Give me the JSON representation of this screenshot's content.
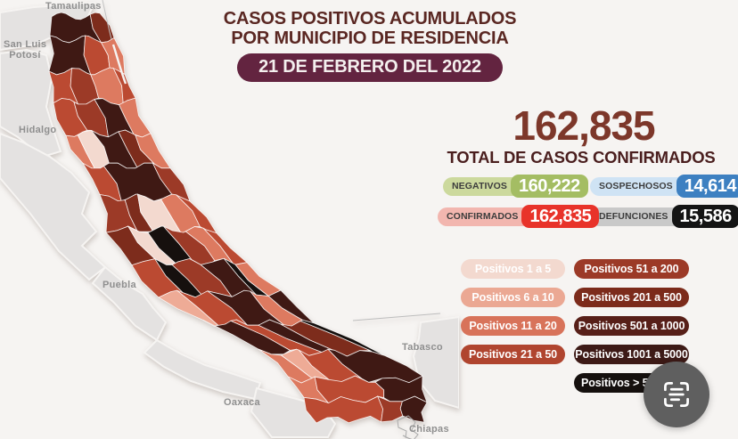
{
  "header": {
    "title_line1": "CASOS POSITIVOS ACUMULADOS",
    "title_line2": "POR MUNICIPIO DE RESIDENCIA",
    "date_banner": "21 DE FEBRERO DEL 2022"
  },
  "summary": {
    "total_value": "162,835",
    "total_label": "TOTAL DE CASOS CONFIRMADOS",
    "badges": [
      {
        "label": "NEGATIVOS",
        "value": "160,222",
        "label_bg": "#ccd99d",
        "value_bg": "#a4bd63",
        "label_color": "#3d3d3d"
      },
      {
        "label": "SOSPECHOSOS",
        "value": "14,614",
        "label_bg": "#cfe3f4",
        "value_bg": "#3d80c1",
        "label_color": "#3d3d3d"
      },
      {
        "label": "CONFIRMADOS",
        "value": "162,835",
        "label_bg": "#f2b6af",
        "value_bg": "#e8332a",
        "label_color": "#3d3d3d"
      },
      {
        "label": "DEFUNCIONES",
        "value": "15,586",
        "label_bg": "#c9c9c9",
        "value_bg": "#141414",
        "label_color": "#3d3d3d"
      }
    ]
  },
  "legend": {
    "column1": [
      {
        "label": "Positivos 1 a 5",
        "color": "#f3d9cf"
      },
      {
        "label": "Positivos 6 a 10",
        "color": "#eba893"
      },
      {
        "label": "Positivos 11 a 20",
        "color": "#d8735a"
      },
      {
        "label": "Positivos 21 a 50",
        "color": "#b0452f"
      }
    ],
    "column2": [
      {
        "label": "Positivos 51 a 200",
        "color": "#9c3a27"
      },
      {
        "label": "Positivos 201 a 500",
        "color": "#7c2b1b"
      },
      {
        "label": "Positivos 501 a 1000",
        "color": "#571f18"
      },
      {
        "label": "Positivos 1001 a 5000",
        "color": "#3d1a16"
      },
      {
        "label": "Positivos > 5000",
        "color": "#15100e"
      }
    ]
  },
  "map": {
    "state_labels": {
      "tamaulipas": "Tamaulipas",
      "san_luis_line1": "San Luis",
      "san_luis_line2": "Potosí",
      "hidalgo": "Hidalgo",
      "puebla": "Puebla",
      "oaxaca": "Oaxaca",
      "tabasco": "Tabasco",
      "chiapas": "Chiapas"
    },
    "palette": {
      "p1": "#f3d9cf",
      "p2": "#eeab96",
      "p3": "#dd7a60",
      "p4": "#bb4a32",
      "p5": "#9c3a27",
      "p6": "#7d2c1c",
      "p7": "#5a2019",
      "p8": "#3f1914",
      "p10": "#16100e"
    },
    "neighbor_color": "#e4e2e1"
  },
  "icons": {
    "scan_button": "scan-lines-icon"
  }
}
